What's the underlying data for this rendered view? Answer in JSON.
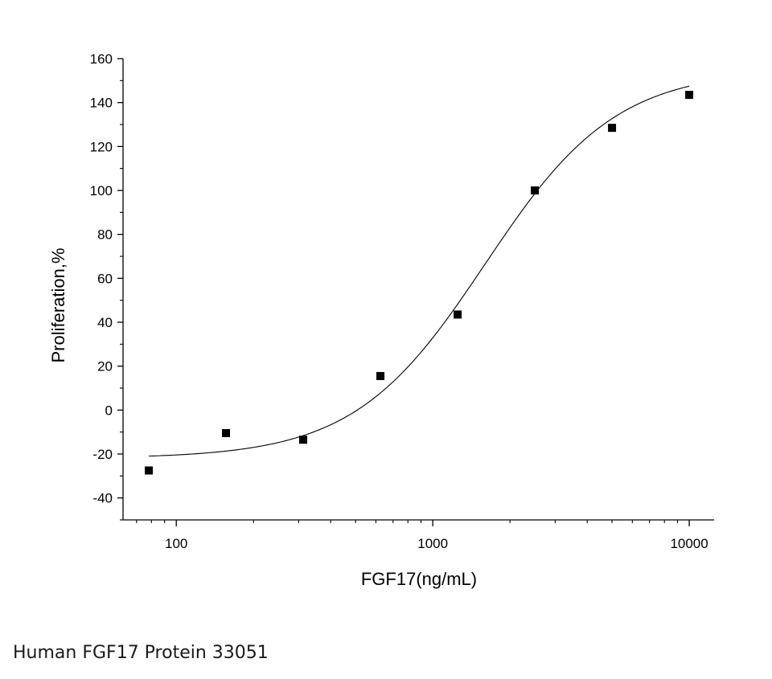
{
  "chart_data": {
    "type": "scatter",
    "title": "",
    "xlabel": "FGF17(ng/mL)",
    "ylabel": "Proliferation,%",
    "x_scale": "log",
    "xlim": [
      62,
      12500
    ],
    "ylim": [
      -50,
      160
    ],
    "x_ticks": [
      100,
      1000,
      10000
    ],
    "x_tick_labels": [
      "100",
      "1000",
      "10000"
    ],
    "y_ticks": [
      -40,
      -20,
      0,
      20,
      40,
      60,
      80,
      100,
      120,
      140,
      160
    ],
    "y_tick_labels": [
      "-40",
      "-20",
      "0",
      "20",
      "40",
      "60",
      "80",
      "100",
      "120",
      "140",
      "160"
    ],
    "grid": false,
    "legend": "none",
    "series": [
      {
        "x": [
          78.125,
          156.25,
          312.5,
          625,
          1250,
          2500,
          5000,
          10000
        ],
        "y": [
          -27.5,
          -10.5,
          -13.5,
          15.5,
          43.5,
          100,
          128.5,
          143.5
        ],
        "marker": "square",
        "color": "#000000"
      }
    ],
    "fit_curve": {
      "model": "logistic",
      "min": -22,
      "max": 155,
      "ec50": 1600,
      "hill": 1.7,
      "color": "#000000"
    }
  },
  "caption": "Human FGF17 Protein 33051"
}
